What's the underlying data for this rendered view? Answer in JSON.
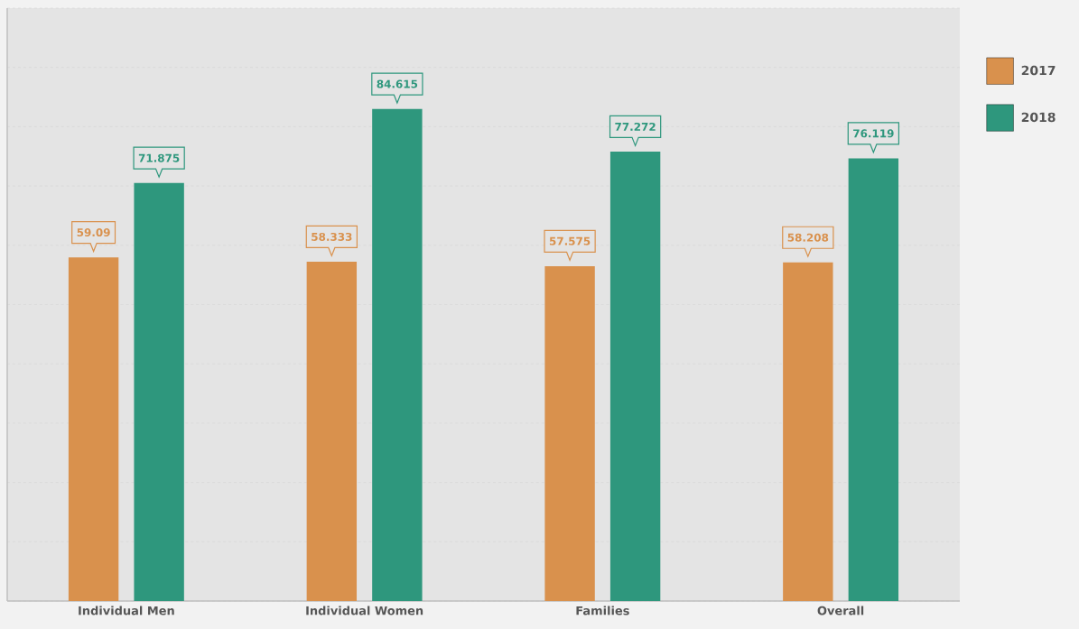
{
  "chart_data": {
    "type": "bar",
    "categories": [
      "Individual Men",
      "Individual Women",
      "Families",
      "Overall"
    ],
    "series": [
      {
        "name": "2017",
        "color": "#d9914d",
        "values": [
          59.09,
          58.333,
          57.575,
          58.208
        ]
      },
      {
        "name": "2018",
        "color": "#2e977d",
        "values": [
          71.875,
          84.615,
          77.272,
          76.119
        ]
      }
    ],
    "grid": "y",
    "data_labels": true,
    "legend": "right"
  }
}
